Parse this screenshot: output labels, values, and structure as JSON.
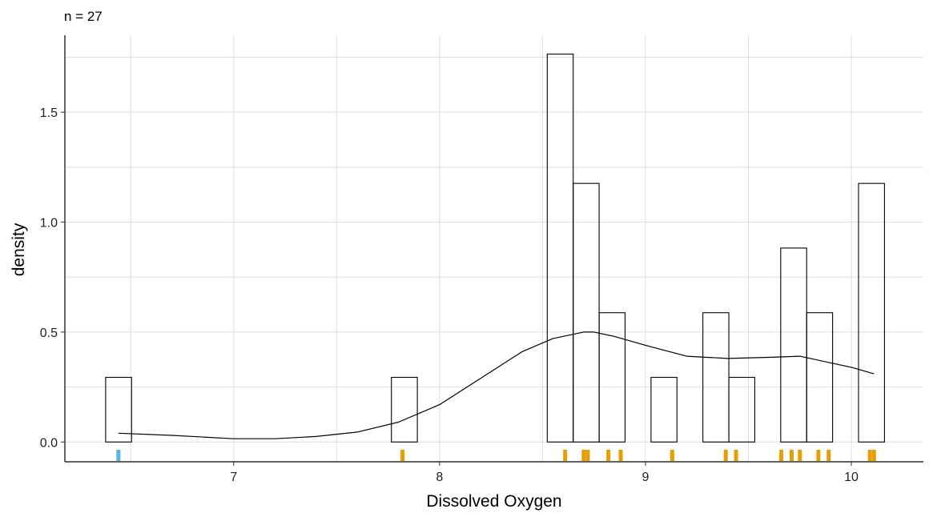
{
  "chart_data": {
    "type": "histogram",
    "annotation": "n = 27",
    "xlabel": "Dissolved Oxygen",
    "ylabel": "density",
    "xlim": [
      6.18,
      10.35
    ],
    "ylim": [
      -0.09,
      1.85
    ],
    "x_ticks": [
      7,
      8,
      9,
      10
    ],
    "x_tick_labels": [
      "7",
      "8",
      "9",
      "10"
    ],
    "y_ticks": [
      0.0,
      0.5,
      1.0,
      1.5
    ],
    "y_tick_labels": [
      "0.0",
      "0.5",
      "1.0",
      "1.5"
    ],
    "grid": true,
    "bin_width": 0.126,
    "bins": [
      {
        "start": 6.378,
        "end": 6.504,
        "density": 0.294
      },
      {
        "start": 7.766,
        "end": 7.892,
        "density": 0.294
      },
      {
        "start": 8.523,
        "end": 8.649,
        "density": 1.764
      },
      {
        "start": 8.649,
        "end": 8.775,
        "density": 1.176
      },
      {
        "start": 8.775,
        "end": 8.901,
        "density": 0.588
      },
      {
        "start": 9.027,
        "end": 9.153,
        "density": 0.294
      },
      {
        "start": 9.279,
        "end": 9.405,
        "density": 0.588
      },
      {
        "start": 9.405,
        "end": 9.531,
        "density": 0.294
      },
      {
        "start": 9.657,
        "end": 9.783,
        "density": 0.882
      },
      {
        "start": 9.783,
        "end": 9.909,
        "density": 0.588
      },
      {
        "start": 10.035,
        "end": 10.161,
        "density": 1.176
      }
    ],
    "density_curve": {
      "x": [
        6.44,
        6.7,
        7.0,
        7.2,
        7.4,
        7.6,
        7.8,
        8.0,
        8.2,
        8.4,
        8.55,
        8.7,
        8.75,
        8.85,
        9.0,
        9.2,
        9.4,
        9.6,
        9.75,
        9.9,
        10.0,
        10.11
      ],
      "y": [
        0.04,
        0.03,
        0.015,
        0.015,
        0.025,
        0.045,
        0.09,
        0.17,
        0.29,
        0.41,
        0.47,
        0.5,
        0.5,
        0.48,
        0.44,
        0.39,
        0.38,
        0.385,
        0.39,
        0.36,
        0.34,
        0.31
      ]
    },
    "rug": {
      "flagged_color": "#56B4E9",
      "normal_color": "#E69F00",
      "flagged": [
        6.44
      ],
      "values": [
        7.82,
        8.61,
        8.7,
        8.72,
        8.82,
        8.88,
        9.13,
        9.39,
        9.44,
        9.66,
        9.71,
        9.75,
        9.84,
        9.89,
        10.09,
        10.11
      ]
    }
  }
}
